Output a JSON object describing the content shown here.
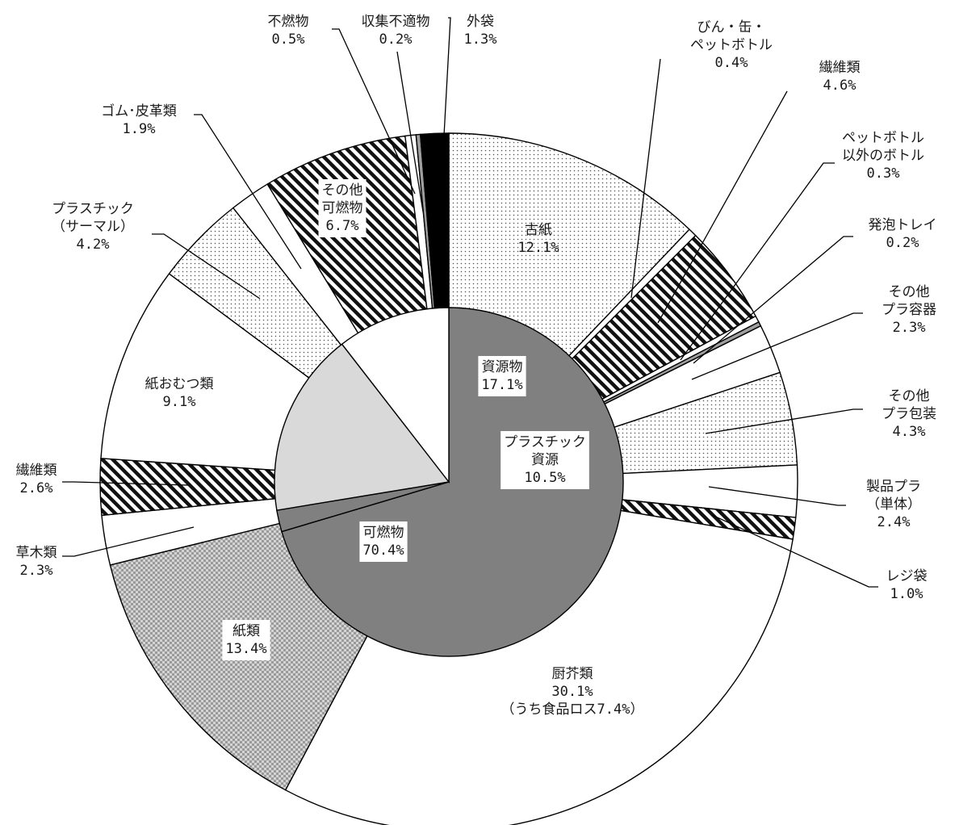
{
  "chart_data": {
    "type": "pie",
    "variant": "nested-donut",
    "inner": [
      {
        "key": "kanen",
        "lines": [
          "可燃物",
          "70.4%"
        ],
        "value": 70.4,
        "fill": "#808080"
      },
      {
        "key": "fumen",
        "lines": [],
        "value": 2.0,
        "fill": "#808080"
      },
      {
        "key": "shigen",
        "lines": [
          "資源物",
          "17.1%"
        ],
        "value": 17.1,
        "fill": "#d9d9d9"
      },
      {
        "key": "plaresource",
        "lines": [
          "プラスチック",
          "資源",
          "10.5%"
        ],
        "value": 10.5,
        "fill": "#ffffff"
      }
    ],
    "outer": [
      {
        "key": "kogami",
        "lines": [
          "古紙",
          "12.1%"
        ],
        "value": 12.1,
        "pattern": "dots"
      },
      {
        "key": "bin",
        "lines": [
          "びん・缶・",
          "ペットボトル",
          "0.4%"
        ],
        "value": 0.4,
        "pattern": "white"
      },
      {
        "key": "seni_a",
        "lines": [
          "繊維類",
          "4.6%"
        ],
        "value": 4.6,
        "pattern": "hatch"
      },
      {
        "key": "petbottle",
        "lines": [
          "ペットボトル",
          "以外のボトル",
          "0.3%"
        ],
        "value": 0.3,
        "pattern": "white"
      },
      {
        "key": "happo",
        "lines": [
          "発泡トレイ",
          "0.2%"
        ],
        "value": 0.2,
        "pattern": "gray"
      },
      {
        "key": "yoki",
        "lines": [
          "その他",
          "プラ容器",
          "2.3%"
        ],
        "value": 2.3,
        "pattern": "white"
      },
      {
        "key": "hoso",
        "lines": [
          "その他",
          "プラ包装",
          "4.3%"
        ],
        "value": 4.3,
        "pattern": "dots"
      },
      {
        "key": "tantai",
        "lines": [
          "製品プラ",
          "（単体）",
          "2.4%"
        ],
        "value": 2.4,
        "pattern": "white"
      },
      {
        "key": "reji",
        "lines": [
          "レジ袋",
          "1.0%"
        ],
        "value": 1.0,
        "pattern": "hatch"
      },
      {
        "key": "chukai",
        "lines": [
          "厨芥類",
          "30.1%",
          "（うち食品ロス7.4%）"
        ],
        "value": 30.1,
        "pattern": "white"
      },
      {
        "key": "shirui",
        "lines": [
          "紙類",
          "13.4%"
        ],
        "value": 13.4,
        "pattern": "crosshatch"
      },
      {
        "key": "somoku",
        "lines": [
          "草木類",
          "2.3%"
        ],
        "value": 2.3,
        "pattern": "white"
      },
      {
        "key": "seni_b",
        "lines": [
          "繊維類",
          "2.6%"
        ],
        "value": 2.6,
        "pattern": "hatch"
      },
      {
        "key": "omutsu",
        "lines": [
          "紙おむつ類",
          "9.1%"
        ],
        "value": 9.1,
        "pattern": "white"
      },
      {
        "key": "thermal",
        "lines": [
          "プラスチック",
          "（サーマル）",
          "4.2%"
        ],
        "value": 4.2,
        "pattern": "dots"
      },
      {
        "key": "gomu",
        "lines": [
          "ゴム･皮革類",
          "1.9%"
        ],
        "value": 1.9,
        "pattern": "white"
      },
      {
        "key": "sonota_kanen",
        "lines": [
          "その他",
          "可燃物",
          "6.7%"
        ],
        "value": 6.7,
        "pattern": "hatch"
      },
      {
        "key": "funen",
        "lines": [
          "不燃物",
          "0.5%"
        ],
        "value": 0.5,
        "pattern": "white"
      },
      {
        "key": "futekinaibutsu",
        "lines": [
          "収集不適物",
          "0.2%"
        ],
        "value": 0.2,
        "pattern": "gray"
      },
      {
        "key": "sotobukuro",
        "lines": [
          "外袋",
          "1.3%"
        ],
        "value": 1.3,
        "pattern": "black"
      }
    ]
  }
}
